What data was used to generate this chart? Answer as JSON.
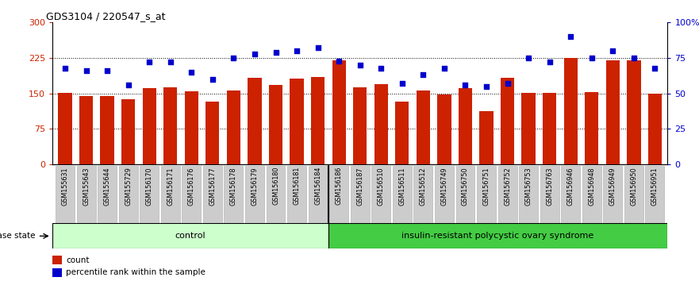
{
  "title": "GDS3104 / 220547_s_at",
  "samples": [
    "GSM155631",
    "GSM155643",
    "GSM155644",
    "GSM155729",
    "GSM156170",
    "GSM156171",
    "GSM156176",
    "GSM156177",
    "GSM156178",
    "GSM156179",
    "GSM156180",
    "GSM156181",
    "GSM156184",
    "GSM156186",
    "GSM156187",
    "GSM156510",
    "GSM156511",
    "GSM156512",
    "GSM156749",
    "GSM156750",
    "GSM156751",
    "GSM156752",
    "GSM156753",
    "GSM156763",
    "GSM156946",
    "GSM156948",
    "GSM156949",
    "GSM156950",
    "GSM156951"
  ],
  "counts": [
    152,
    144,
    145,
    138,
    162,
    163,
    155,
    133,
    157,
    183,
    168,
    182,
    185,
    220,
    163,
    170,
    133,
    157,
    148,
    162,
    113,
    183,
    152,
    152,
    225,
    153,
    220,
    220,
    150
  ],
  "percentile": [
    68,
    66,
    66,
    56,
    72,
    72,
    65,
    60,
    75,
    78,
    79,
    80,
    82,
    73,
    70,
    68,
    57,
    63,
    68,
    56,
    55,
    57,
    75,
    72,
    90,
    75,
    80,
    75,
    68
  ],
  "control_count": 13,
  "disease_label": "insulin-resistant polycystic ovary syndrome",
  "control_label": "control",
  "legend_count": "count",
  "legend_percentile": "percentile rank within the sample",
  "ylim_left": [
    0,
    300
  ],
  "ylim_right": [
    0,
    100
  ],
  "yticks_left": [
    0,
    75,
    150,
    225,
    300
  ],
  "yticks_right": [
    0,
    25,
    50,
    75,
    100
  ],
  "ytick_labels_left": [
    "0",
    "75",
    "150",
    "225",
    "300"
  ],
  "ytick_labels_right": [
    "0",
    "25",
    "50",
    "75",
    "100%"
  ],
  "hlines": [
    75,
    150,
    225
  ],
  "bar_color": "#cc2200",
  "dot_color": "#0000cc",
  "control_bg": "#ccffcc",
  "disease_bg": "#44cc44",
  "sample_bg": "#cccccc",
  "axis_bg": "#ffffff"
}
